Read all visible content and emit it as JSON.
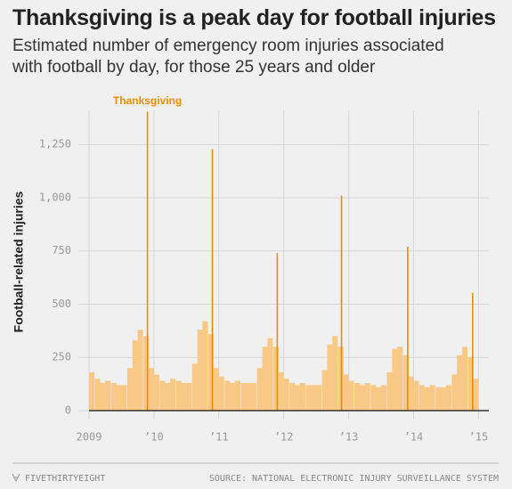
{
  "chart_data": {
    "type": "bar",
    "title": "Thanksgiving is a peak day for football injuries",
    "subtitle": "Estimated number of emergency room injuries associated with football by day, for those 25 years and older",
    "y_label": "Football-related injuries",
    "annotation": "Thanksgiving",
    "xlim": [
      2009,
      2015.05
    ],
    "xticks": [
      {
        "value": 2009,
        "label": "2009"
      },
      {
        "value": 2010,
        "label": "’10"
      },
      {
        "value": 2011,
        "label": "’11"
      },
      {
        "value": 2012,
        "label": "’12"
      },
      {
        "value": 2013,
        "label": "’13"
      },
      {
        "value": 2014,
        "label": "’14"
      },
      {
        "value": 2015,
        "label": "’15"
      }
    ],
    "ylim": [
      0,
      1410
    ],
    "yticks": [
      0,
      250,
      500,
      750,
      {
        "value": 1000,
        "label": "1,000"
      },
      {
        "value": 1250,
        "label": "1,250"
      }
    ],
    "grid": true,
    "series": [
      {
        "color": "#f8c986",
        "x": [
          2009.04,
          2009.13,
          2009.21,
          2009.29,
          2009.38,
          2009.46,
          2009.54,
          2009.63,
          2009.71,
          2009.79,
          2009.88,
          2009.96,
          2010.04,
          2010.13,
          2010.21,
          2010.29,
          2010.38,
          2010.46,
          2010.54,
          2010.63,
          2010.71,
          2010.79,
          2010.88,
          2010.96,
          2011.04,
          2011.13,
          2011.21,
          2011.29,
          2011.38,
          2011.46,
          2011.54,
          2011.63,
          2011.71,
          2011.79,
          2011.88,
          2011.96,
          2012.04,
          2012.13,
          2012.21,
          2012.29,
          2012.38,
          2012.46,
          2012.54,
          2012.63,
          2012.71,
          2012.79,
          2012.88,
          2012.96,
          2013.04,
          2013.13,
          2013.21,
          2013.29,
          2013.38,
          2013.46,
          2013.54,
          2013.63,
          2013.71,
          2013.79,
          2013.88,
          2013.96,
          2014.04,
          2014.13,
          2014.21,
          2014.29,
          2014.38,
          2014.46,
          2014.54,
          2014.63,
          2014.71,
          2014.79,
          2014.88,
          2014.96
        ],
        "values": [
          180,
          150,
          130,
          140,
          130,
          120,
          120,
          200,
          330,
          380,
          350,
          200,
          170,
          140,
          130,
          150,
          140,
          130,
          130,
          220,
          380,
          420,
          360,
          200,
          160,
          140,
          130,
          140,
          130,
          130,
          130,
          200,
          300,
          340,
          300,
          180,
          150,
          130,
          120,
          130,
          120,
          120,
          120,
          190,
          310,
          350,
          300,
          170,
          140,
          130,
          120,
          130,
          120,
          110,
          120,
          180,
          290,
          300,
          260,
          160,
          140,
          120,
          110,
          120,
          110,
          110,
          120,
          170,
          260,
          300,
          250,
          150
        ]
      },
      {
        "color": "#ed8b00",
        "x": [
          2009.9,
          2010.9,
          2011.9,
          2012.89,
          2013.91,
          2014.91
        ],
        "values": [
          1405,
          1228,
          740,
          1010,
          770,
          552
        ]
      }
    ]
  },
  "footer": {
    "brand": "FIVETHIRTYEIGHT",
    "source": "SOURCE: NATIONAL ELECTRONIC INJURY SURVEILLANCE SYSTEM"
  }
}
